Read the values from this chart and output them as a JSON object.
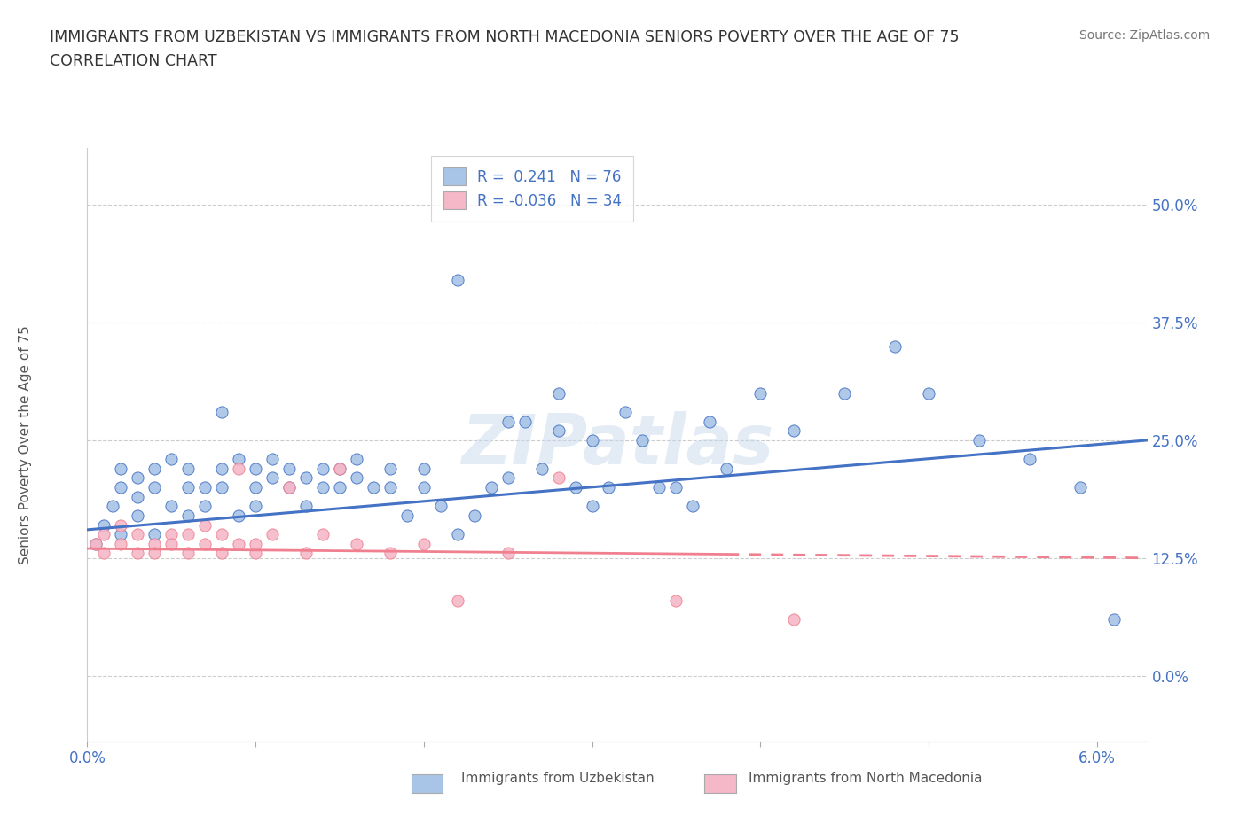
{
  "title_line1": "IMMIGRANTS FROM UZBEKISTAN VS IMMIGRANTS FROM NORTH MACEDONIA SENIORS POVERTY OVER THE AGE OF 75",
  "title_line2": "CORRELATION CHART",
  "source": "Source: ZipAtlas.com",
  "ylabel": "Seniors Poverty Over the Age of 75",
  "xlim": [
    0.0,
    0.063
  ],
  "ylim": [
    -0.07,
    0.56
  ],
  "yticks": [
    0.0,
    0.125,
    0.25,
    0.375,
    0.5
  ],
  "ytick_labels": [
    "0.0%",
    "12.5%",
    "25.0%",
    "37.5%",
    "50.0%"
  ],
  "xticks": [
    0.0,
    0.01,
    0.02,
    0.03,
    0.04,
    0.05,
    0.06
  ],
  "xtick_labels": [
    "0.0%",
    "",
    "",
    "",
    "",
    "",
    "6.0%"
  ],
  "color_uz": "#a8c4e6",
  "color_nm": "#f4b8c8",
  "line_color_uz": "#4472c4",
  "line_color_nm": "#f08090",
  "watermark": "ZIPatlas",
  "uz_x": [
    0.0005,
    0.001,
    0.0015,
    0.002,
    0.002,
    0.002,
    0.003,
    0.003,
    0.003,
    0.004,
    0.004,
    0.004,
    0.005,
    0.005,
    0.006,
    0.006,
    0.006,
    0.007,
    0.007,
    0.008,
    0.008,
    0.008,
    0.009,
    0.009,
    0.01,
    0.01,
    0.01,
    0.011,
    0.011,
    0.012,
    0.012,
    0.013,
    0.013,
    0.014,
    0.014,
    0.015,
    0.015,
    0.016,
    0.016,
    0.017,
    0.018,
    0.018,
    0.019,
    0.02,
    0.02,
    0.021,
    0.022,
    0.023,
    0.024,
    0.025,
    0.026,
    0.027,
    0.028,
    0.029,
    0.03,
    0.031,
    0.033,
    0.035,
    0.037,
    0.04,
    0.022,
    0.025,
    0.028,
    0.03,
    0.032,
    0.034,
    0.036,
    0.038,
    0.042,
    0.045,
    0.048,
    0.05,
    0.053,
    0.056,
    0.059,
    0.061
  ],
  "uz_y": [
    0.14,
    0.16,
    0.18,
    0.22,
    0.2,
    0.15,
    0.19,
    0.21,
    0.17,
    0.22,
    0.2,
    0.15,
    0.23,
    0.18,
    0.22,
    0.2,
    0.17,
    0.2,
    0.18,
    0.28,
    0.22,
    0.2,
    0.23,
    0.17,
    0.2,
    0.18,
    0.22,
    0.21,
    0.23,
    0.2,
    0.22,
    0.21,
    0.18,
    0.22,
    0.2,
    0.22,
    0.2,
    0.21,
    0.23,
    0.2,
    0.22,
    0.2,
    0.17,
    0.2,
    0.22,
    0.18,
    0.15,
    0.17,
    0.2,
    0.21,
    0.27,
    0.22,
    0.26,
    0.2,
    0.18,
    0.2,
    0.25,
    0.2,
    0.27,
    0.3,
    0.42,
    0.27,
    0.3,
    0.25,
    0.28,
    0.2,
    0.18,
    0.22,
    0.26,
    0.3,
    0.35,
    0.3,
    0.25,
    0.23,
    0.2,
    0.06
  ],
  "nm_x": [
    0.0005,
    0.001,
    0.001,
    0.002,
    0.002,
    0.003,
    0.003,
    0.004,
    0.004,
    0.005,
    0.005,
    0.006,
    0.006,
    0.007,
    0.007,
    0.008,
    0.008,
    0.009,
    0.009,
    0.01,
    0.01,
    0.011,
    0.012,
    0.013,
    0.014,
    0.015,
    0.016,
    0.018,
    0.02,
    0.022,
    0.025,
    0.028,
    0.035,
    0.042
  ],
  "nm_y": [
    0.14,
    0.13,
    0.15,
    0.14,
    0.16,
    0.13,
    0.15,
    0.14,
    0.13,
    0.15,
    0.14,
    0.13,
    0.15,
    0.14,
    0.16,
    0.13,
    0.15,
    0.22,
    0.14,
    0.13,
    0.14,
    0.15,
    0.2,
    0.13,
    0.15,
    0.22,
    0.14,
    0.13,
    0.14,
    0.08,
    0.13,
    0.21,
    0.08,
    0.06
  ],
  "uz_line_x0": 0.0,
  "uz_line_y0": 0.155,
  "uz_line_x1": 0.063,
  "uz_line_y1": 0.25,
  "nm_line_x0": 0.0,
  "nm_line_y0": 0.135,
  "nm_line_x1": 0.063,
  "nm_line_y1": 0.125
}
